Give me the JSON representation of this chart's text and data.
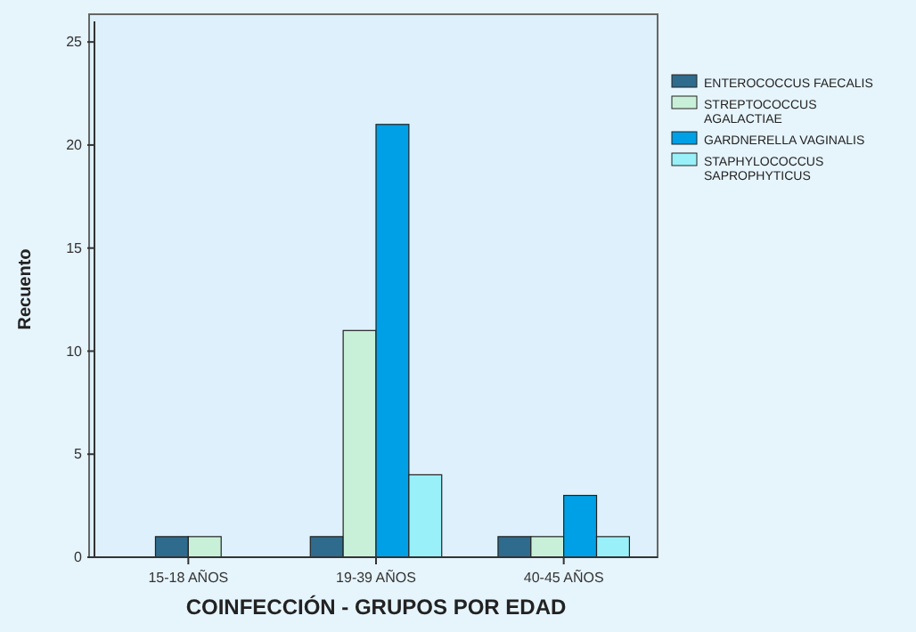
{
  "chart_data": {
    "type": "bar",
    "xlabel": "COINFECCIÓN - GRUPOS POR EDAD",
    "ylabel": "Recuento",
    "categories": [
      "15-18 AÑOS",
      "19-39 AÑOS",
      "40-45 AÑOS"
    ],
    "series": [
      {
        "name": "ENTEROCOCCUS FAECALIS",
        "color": "#2e6b8c",
        "values": [
          1,
          1,
          1
        ]
      },
      {
        "name": "STREPTOCOCCUS AGALACTIAE",
        "color": "#c8f0d8",
        "values": [
          1,
          11,
          1
        ]
      },
      {
        "name": "GARDNERELLA VAGINALIS",
        "color": "#00a0e6",
        "values": [
          null,
          21,
          3
        ]
      },
      {
        "name": "STAPHYLOCOCCUS SAPROPHYTICUS",
        "color": "#99f0f8",
        "values": [
          null,
          4,
          1
        ]
      }
    ],
    "ylim": [
      0,
      26
    ],
    "yticks": [
      0,
      5,
      10,
      15,
      20,
      25
    ],
    "legend": "right",
    "grid": false
  }
}
